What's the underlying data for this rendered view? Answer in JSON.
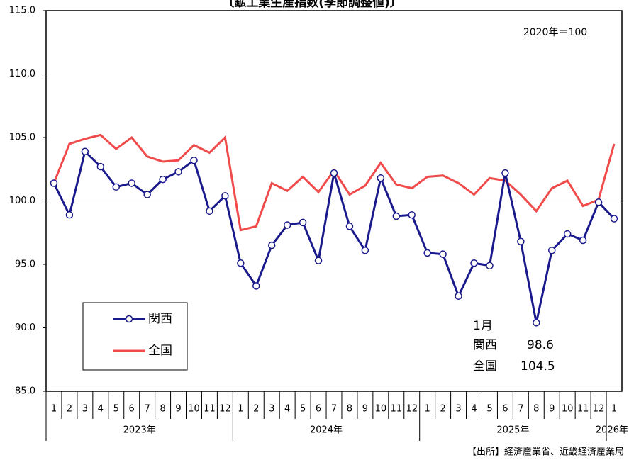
{
  "chart_data": {
    "type": "line",
    "title": "〔鉱工業生産指数(季節調整値)〕",
    "note": "2020年＝100",
    "annotation": "1月",
    "source": "【出所】経済産業省、近畿経済産業局",
    "categories": [
      "1",
      "2",
      "3",
      "4",
      "5",
      "6",
      "7",
      "8",
      "9",
      "10",
      "11",
      "12",
      "1",
      "2",
      "3",
      "4",
      "5",
      "6",
      "7",
      "8",
      "9",
      "10",
      "11",
      "12",
      "1",
      "2",
      "3",
      "4",
      "5",
      "6",
      "7",
      "8",
      "9",
      "10",
      "11",
      "12",
      "1"
    ],
    "years": [
      "2023年",
      "2024年",
      "2025年",
      "2026年"
    ],
    "series": [
      {
        "name": "関西",
        "color": "#1a1a8c",
        "marker": "circle",
        "values": [
          101.4,
          98.9,
          103.9,
          102.7,
          101.1,
          101.4,
          100.5,
          101.7,
          102.3,
          103.2,
          99.2,
          100.4,
          95.1,
          93.3,
          96.5,
          98.1,
          98.3,
          95.3,
          102.2,
          98.0,
          96.1,
          101.8,
          98.8,
          98.9,
          95.9,
          95.8,
          92.5,
          95.1,
          94.9,
          102.2,
          96.8,
          90.4,
          96.1,
          97.4,
          96.9,
          99.9,
          98.6
        ]
      },
      {
        "name": "全国",
        "color": "#f04a4a",
        "values": [
          101.4,
          104.5,
          104.9,
          105.2,
          104.1,
          105.0,
          103.5,
          103.1,
          103.2,
          104.4,
          103.8,
          105.0,
          97.7,
          98.0,
          101.4,
          100.8,
          101.9,
          100.7,
          102.4,
          100.5,
          101.2,
          103.0,
          101.3,
          101.0,
          101.9,
          102.0,
          101.4,
          100.5,
          101.8,
          101.6,
          100.5,
          99.2,
          101.0,
          101.6,
          99.6,
          100.1,
          104.5
        ]
      }
    ],
    "reference_line": 100,
    "ylim": [
      85,
      115
    ],
    "yticks": [
      {
        "value": 85,
        "label": "85.0"
      },
      {
        "value": 90,
        "label": "90.0"
      },
      {
        "value": 95,
        "label": "95.0"
      },
      {
        "value": 100,
        "label": "100.0"
      },
      {
        "value": 105,
        "label": "105.0"
      },
      {
        "value": 110,
        "label": "110.0"
      },
      {
        "value": 115,
        "label": "115.0"
      }
    ]
  }
}
